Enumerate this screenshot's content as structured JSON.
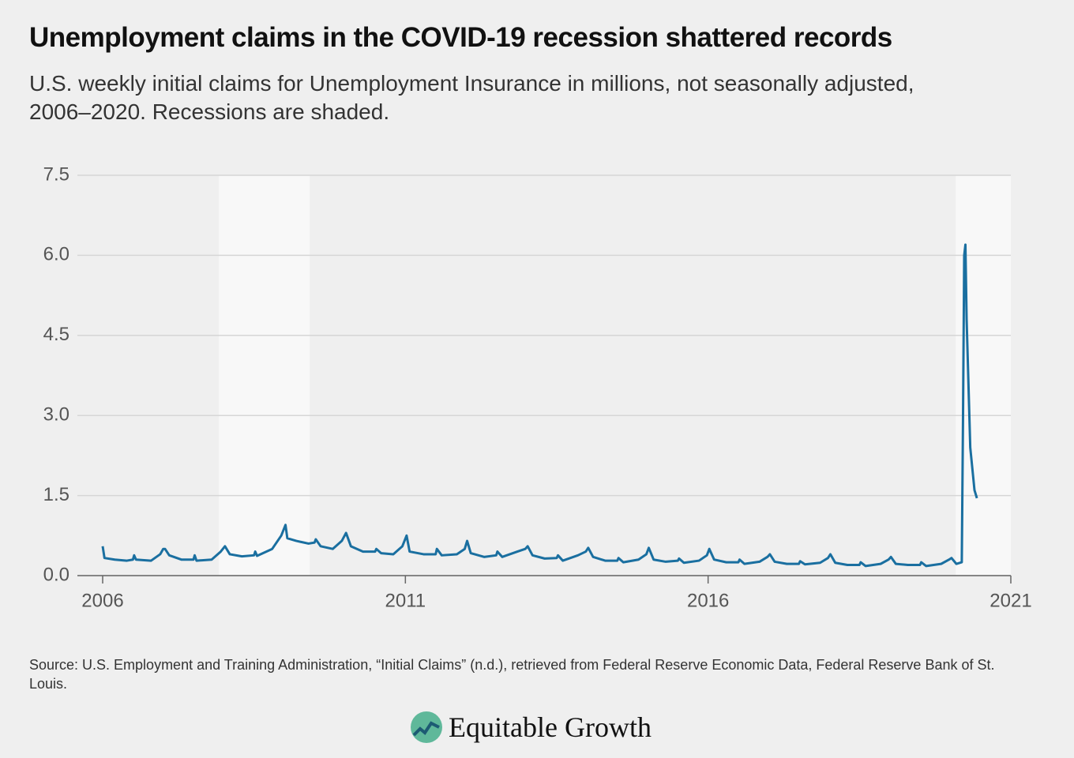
{
  "chart_data": {
    "type": "line",
    "title": "Unemployment claims in the COVID-19 recession shattered records",
    "subtitle": "U.S. weekly initial claims for Unemployment Insurance in millions, not seasonally adjusted, 2006–2020. Recessions are shaded.",
    "source": "Source: U.S. Employment and Training Administration, “Initial Claims” (n.d.), retrieved from Federal Reserve Economic Data, Federal Reserve Bank of St. Louis.",
    "brand": "Equitable Growth",
    "xlim": [
      2006,
      2021
    ],
    "xticks": [
      2006,
      2011,
      2016,
      2021
    ],
    "ylim": [
      0,
      7.5
    ],
    "yticks": [
      {
        "value": 0,
        "label": "0.0"
      },
      1.5,
      {
        "value": 3,
        "label": "3.0"
      },
      4.5,
      {
        "value": 6,
        "label": "6.0"
      },
      7.5
    ],
    "grid": true,
    "recessions": [
      {
        "start": 2007.92,
        "end": 2009.42
      },
      {
        "start": 2020.09,
        "end": 2021
      }
    ],
    "recession_color": "#f8f8f8",
    "x": [
      2006.0,
      2006.03,
      2006.2,
      2006.4,
      2006.5,
      2006.52,
      2006.55,
      2006.8,
      2006.95,
      2007.0,
      2007.03,
      2007.1,
      2007.3,
      2007.5,
      2007.52,
      2007.55,
      2007.8,
      2007.95,
      2008.02,
      2008.1,
      2008.3,
      2008.5,
      2008.52,
      2008.55,
      2008.8,
      2008.95,
      2009.02,
      2009.05,
      2009.2,
      2009.4,
      2009.5,
      2009.52,
      2009.6,
      2009.8,
      2009.95,
      2010.02,
      2010.1,
      2010.3,
      2010.5,
      2010.52,
      2010.6,
      2010.8,
      2010.95,
      2011.02,
      2011.07,
      2011.3,
      2011.5,
      2011.52,
      2011.6,
      2011.85,
      2011.98,
      2012.02,
      2012.08,
      2012.3,
      2012.5,
      2012.52,
      2012.6,
      2012.85,
      2012.98,
      2013.02,
      2013.1,
      2013.3,
      2013.5,
      2013.52,
      2013.6,
      2013.85,
      2013.98,
      2014.02,
      2014.1,
      2014.3,
      2014.5,
      2014.52,
      2014.6,
      2014.85,
      2014.98,
      2015.02,
      2015.1,
      2015.3,
      2015.5,
      2015.52,
      2015.6,
      2015.85,
      2015.98,
      2016.02,
      2016.1,
      2016.3,
      2016.5,
      2016.52,
      2016.6,
      2016.85,
      2016.98,
      2017.02,
      2017.1,
      2017.3,
      2017.5,
      2017.52,
      2017.6,
      2017.85,
      2017.98,
      2018.02,
      2018.1,
      2018.3,
      2018.5,
      2018.52,
      2018.6,
      2018.85,
      2018.98,
      2019.02,
      2019.1,
      2019.3,
      2019.5,
      2019.52,
      2019.6,
      2019.85,
      2019.98,
      2020.02,
      2020.1,
      2020.19,
      2020.21,
      2020.23,
      2020.25,
      2020.27,
      2020.33,
      2020.4,
      2020.44
    ],
    "series": [
      {
        "name": "Initial claims",
        "color": "#1a6fa0",
        "values": [
          0.55,
          0.33,
          0.3,
          0.28,
          0.3,
          0.38,
          0.3,
          0.28,
          0.4,
          0.5,
          0.5,
          0.38,
          0.3,
          0.3,
          0.38,
          0.28,
          0.3,
          0.45,
          0.55,
          0.4,
          0.36,
          0.38,
          0.45,
          0.37,
          0.5,
          0.75,
          0.95,
          0.7,
          0.65,
          0.6,
          0.62,
          0.68,
          0.55,
          0.5,
          0.65,
          0.8,
          0.55,
          0.45,
          0.45,
          0.5,
          0.42,
          0.4,
          0.55,
          0.75,
          0.45,
          0.4,
          0.4,
          0.5,
          0.38,
          0.4,
          0.5,
          0.65,
          0.42,
          0.35,
          0.38,
          0.45,
          0.35,
          0.45,
          0.5,
          0.55,
          0.38,
          0.32,
          0.33,
          0.38,
          0.28,
          0.38,
          0.45,
          0.52,
          0.35,
          0.28,
          0.28,
          0.33,
          0.25,
          0.3,
          0.4,
          0.52,
          0.3,
          0.26,
          0.28,
          0.32,
          0.24,
          0.28,
          0.38,
          0.5,
          0.3,
          0.25,
          0.25,
          0.3,
          0.22,
          0.26,
          0.35,
          0.4,
          0.26,
          0.22,
          0.22,
          0.27,
          0.21,
          0.24,
          0.33,
          0.4,
          0.24,
          0.2,
          0.2,
          0.25,
          0.18,
          0.22,
          0.3,
          0.35,
          0.22,
          0.2,
          0.2,
          0.25,
          0.18,
          0.22,
          0.3,
          0.33,
          0.22,
          0.25,
          2.9,
          6.0,
          6.2,
          4.8,
          2.4,
          1.6,
          1.45
        ]
      }
    ]
  }
}
